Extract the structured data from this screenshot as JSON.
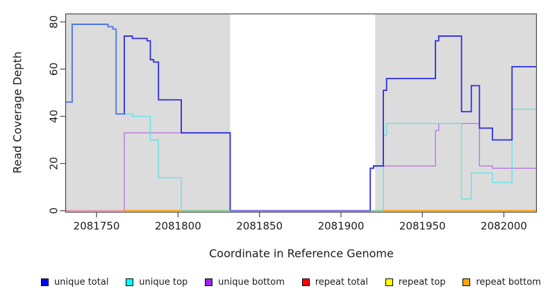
{
  "chart_data": {
    "type": "line",
    "subtype": "step-coverage",
    "title": "",
    "xlabel": "Coordinate in Reference Genome",
    "ylabel": "Read Coverage Depth",
    "xlim": [
      2081731,
      2082020
    ],
    "ylim": [
      0,
      83.4
    ],
    "x_ticks": [
      2081750,
      2081800,
      2081850,
      2081900,
      2081950,
      2082000
    ],
    "x_tick_labels": [
      "2081750",
      "2081800",
      "2081850",
      "2081900",
      "2081950",
      "2082000"
    ],
    "y_ticks": [
      0,
      20,
      40,
      60,
      80
    ],
    "y_tick_labels": [
      "0",
      "20",
      "40",
      "60",
      "80"
    ],
    "grid": false,
    "legend_position": "bottom",
    "background_color": "#ffffff",
    "shaded_region_color": "#dcdcdc",
    "shaded_regions": [
      {
        "x0": 2081731,
        "x1": 2081832
      },
      {
        "x0": 2081921,
        "x1": 2082020
      }
    ],
    "series": [
      {
        "name": "unique total",
        "color": "#2b2be2",
        "legend_color": "#0000ff",
        "width": 1.8,
        "points": [
          [
            2081731,
            46
          ],
          [
            2081735,
            79
          ],
          [
            2081757,
            78
          ],
          [
            2081760,
            77
          ],
          [
            2081762,
            41
          ],
          [
            2081767,
            74
          ],
          [
            2081772,
            73
          ],
          [
            2081781,
            72
          ],
          [
            2081783,
            64
          ],
          [
            2081785,
            63
          ],
          [
            2081788,
            47
          ],
          [
            2081802,
            33
          ],
          [
            2081832,
            0
          ],
          [
            2081918,
            18
          ],
          [
            2081920,
            19
          ],
          [
            2081926,
            51
          ],
          [
            2081928,
            56
          ],
          [
            2081958,
            72
          ],
          [
            2081960,
            74
          ],
          [
            2081974,
            42
          ],
          [
            2081980,
            53
          ],
          [
            2081985,
            35
          ],
          [
            2081993,
            30
          ],
          [
            2082005,
            61
          ]
        ]
      },
      {
        "name": "unique top",
        "color": "#62e3e8",
        "legend_color": "#00ffff",
        "width": 1.4,
        "points": [
          [
            2081731,
            46
          ],
          [
            2081735,
            79
          ],
          [
            2081757,
            78
          ],
          [
            2081760,
            77
          ],
          [
            2081762,
            41
          ],
          [
            2081772,
            40
          ],
          [
            2081783,
            30
          ],
          [
            2081788,
            14
          ],
          [
            2081802,
            0
          ],
          [
            2081926,
            32
          ],
          [
            2081928,
            37
          ],
          [
            2081974,
            5
          ],
          [
            2081980,
            16
          ],
          [
            2081993,
            12
          ],
          [
            2082005,
            43
          ]
        ]
      },
      {
        "name": "unique bottom",
        "color": "#b878e2",
        "legend_color": "#a020f0",
        "width": 1.4,
        "points": [
          [
            2081731,
            0
          ],
          [
            2081767,
            33
          ],
          [
            2081832,
            0
          ],
          [
            2081918,
            18
          ],
          [
            2081920,
            19
          ],
          [
            2081958,
            34
          ],
          [
            2081960,
            37
          ],
          [
            2081985,
            19
          ],
          [
            2081993,
            18
          ]
        ]
      },
      {
        "name": "repeat total",
        "color": "#ff2222",
        "legend_color": "#ff0000",
        "width": 1.6,
        "points": [
          [
            2081731,
            0
          ]
        ]
      },
      {
        "name": "repeat top",
        "color": "#ffff00",
        "legend_color": "#ffff00",
        "width": 1.6,
        "points": [
          [
            2081731,
            0
          ]
        ]
      },
      {
        "name": "repeat bottom",
        "color": "#ff9d00",
        "legend_color": "#ffa500",
        "width": 1.8,
        "points": [
          [
            2081731,
            0
          ]
        ]
      }
    ],
    "baseline_segments": [
      {
        "x0": 2081731,
        "x1": 2081767,
        "color": "#ed8fa4"
      },
      {
        "x0": 2081767,
        "x1": 2081802,
        "color": "#ff9d00"
      },
      {
        "x0": 2081802,
        "x1": 2081832,
        "color": "#7cc795"
      },
      {
        "x0": 2081832,
        "x1": 2081918,
        "color": "#6f5fe0"
      },
      {
        "x0": 2081918,
        "x1": 2081926,
        "color": "#7cc795"
      },
      {
        "x0": 2081926,
        "x1": 2082020,
        "color": "#ff9d00"
      }
    ],
    "overlap_highlight_color": "#73c9ee",
    "axis_color": "#474747",
    "text_color": "#1a1a1a"
  }
}
